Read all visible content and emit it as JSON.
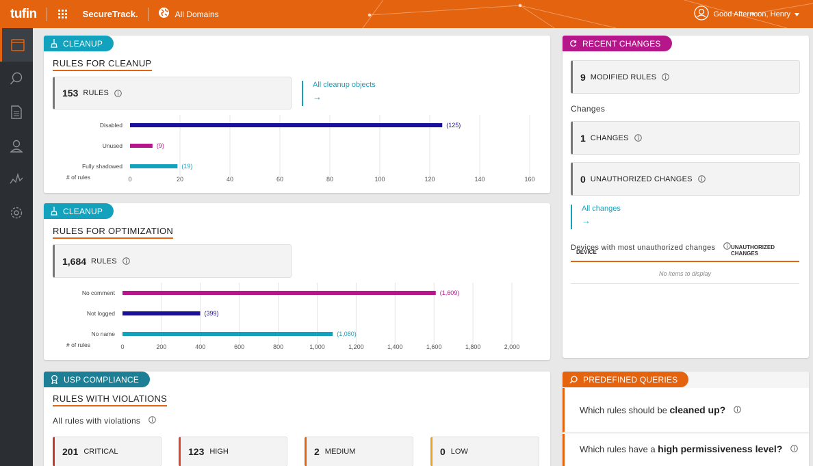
{
  "header": {
    "logo": "tufin",
    "product": "SecureTrack.",
    "domain": "All Domains",
    "greeting": "Good Afternoon, Henry"
  },
  "sidebar": {
    "items": [
      {
        "name": "dashboard-icon",
        "active": true
      },
      {
        "name": "search-icon",
        "active": false
      },
      {
        "name": "document-icon",
        "active": false
      },
      {
        "name": "user-pin-icon",
        "active": false
      },
      {
        "name": "pulse-icon",
        "active": false
      },
      {
        "name": "gear-icon",
        "active": false
      }
    ]
  },
  "cleanup": {
    "badge": "CLEANUP",
    "title": "RULES FOR CLEANUP",
    "count": "153",
    "count_label": "RULES",
    "link": "All cleanup objects",
    "link_arrow": "→",
    "axis_label": "# of rules"
  },
  "optimization": {
    "badge": "CLEANUP",
    "title": "RULES FOR OPTIMIZATION",
    "count": "1,684",
    "count_label": "RULES",
    "axis_label": "# of rules"
  },
  "recent_changes": {
    "badge": "RECENT CHANGES",
    "modified_count": "9",
    "modified_label": "MODIFIED RULES",
    "changes_heading": "Changes",
    "changes_count": "1",
    "changes_label": "CHANGES",
    "unauth_count": "0",
    "unauth_label": "UNAUTHORIZED CHANGES",
    "link": "All changes",
    "link_arrow": "→",
    "devices_heading": "Devices with most unauthorized changes",
    "table": {
      "col_device": "DEVICE",
      "col_unauth_1": "UNAUTHORIZED",
      "col_unauth_2": "CHANGES",
      "empty": "No items to display"
    }
  },
  "compliance": {
    "badge": "USP COMPLIANCE",
    "title": "RULES WITH VIOLATIONS",
    "subtitle": "All rules with violations",
    "items": [
      {
        "count": "201",
        "label": "CRITICAL",
        "color": "#c0392b"
      },
      {
        "count": "123",
        "label": "HIGH",
        "color": "#d9432a"
      },
      {
        "count": "2",
        "label": "MEDIUM",
        "color": "#e4630e"
      },
      {
        "count": "0",
        "label": "LOW",
        "color": "#f0a020"
      }
    ]
  },
  "queries": {
    "badge": "PREDEFINED QUERIES",
    "q1_pre": "Which rules should be ",
    "q1_bold": "cleaned up?",
    "q2_pre": "Which rules have a ",
    "q2_bold": "high permissiveness level?"
  },
  "chart_data": [
    {
      "type": "bar",
      "orientation": "horizontal",
      "categories": [
        "Disabled",
        "Unused",
        "Fully shadowed"
      ],
      "values": [
        125,
        9,
        19
      ],
      "value_labels": [
        "(125)",
        "(9)",
        "(19)"
      ],
      "colors": [
        "#1a0f9a",
        "#b5168a",
        "#13a2be"
      ],
      "xlabel": "# of rules",
      "xlim": [
        0,
        160
      ],
      "xticks": [
        0,
        20,
        40,
        60,
        80,
        100,
        120,
        140,
        160
      ],
      "xtick_labels": [
        "0",
        "20",
        "40",
        "60",
        "80",
        "100",
        "120",
        "140",
        "160"
      ],
      "grid": true
    },
    {
      "type": "bar",
      "orientation": "horizontal",
      "categories": [
        "No comment",
        "Not logged",
        "No name"
      ],
      "values": [
        1609,
        399,
        1080
      ],
      "value_labels": [
        "(1,609)",
        "(399)",
        "(1,080)"
      ],
      "colors": [
        "#b5168a",
        "#1a0f9a",
        "#13a2be"
      ],
      "xlabel": "# of rules",
      "xlim": [
        0,
        2000
      ],
      "xticks": [
        0,
        200,
        400,
        600,
        800,
        1000,
        1200,
        1400,
        1600,
        1800,
        2000
      ],
      "xtick_labels": [
        "0",
        "200",
        "400",
        "600",
        "800",
        "1,000",
        "1,200",
        "1,400",
        "1,600",
        "1,800",
        "2,000"
      ],
      "grid": true
    }
  ]
}
